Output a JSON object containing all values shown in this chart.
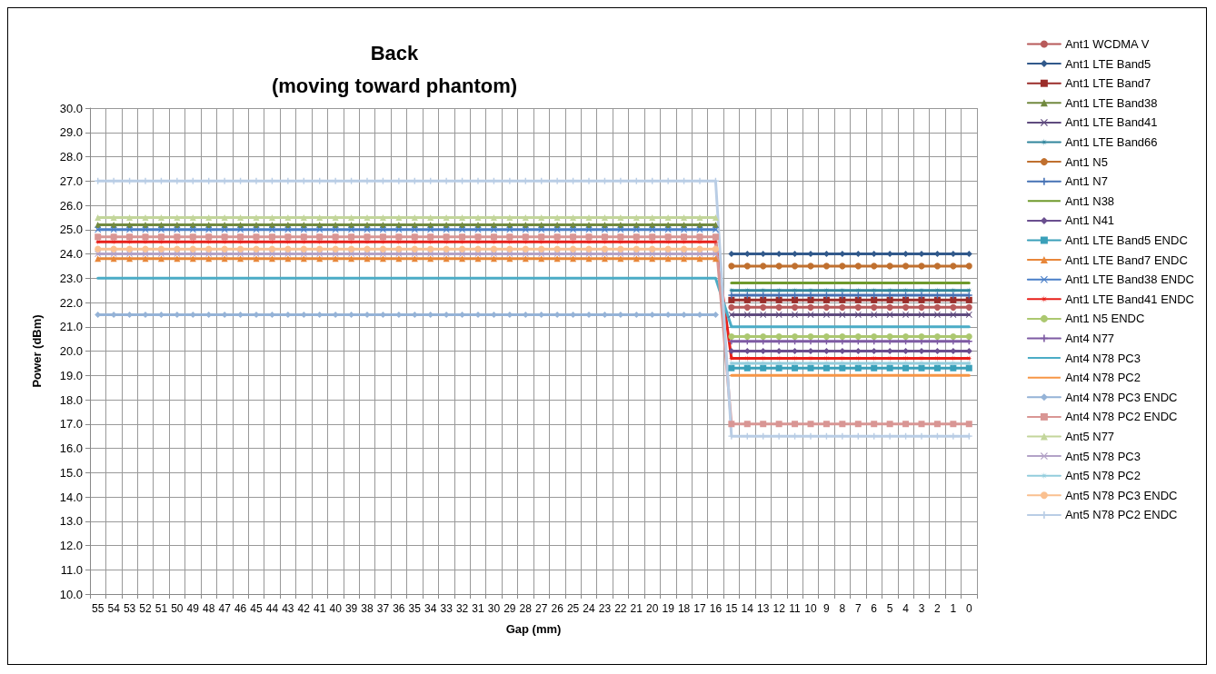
{
  "chart_data": {
    "type": "line",
    "title": "Back\n(moving toward phantom)",
    "xlabel": "Gap (mm)",
    "ylabel": "Power (dBm)",
    "categories": [
      "55",
      "54",
      "53",
      "52",
      "51",
      "50",
      "49",
      "48",
      "47",
      "46",
      "45",
      "44",
      "43",
      "42",
      "41",
      "40",
      "39",
      "38",
      "37",
      "36",
      "35",
      "34",
      "33",
      "32",
      "31",
      "30",
      "29",
      "28",
      "27",
      "26",
      "25",
      "24",
      "23",
      "22",
      "21",
      "20",
      "19",
      "18",
      "17",
      "16",
      "15",
      "14",
      "13",
      "12",
      "11",
      "10",
      "9",
      "8",
      "7",
      "6",
      "5",
      "4",
      "3",
      "2",
      "1",
      "0"
    ],
    "ylim": [
      10,
      30
    ],
    "yticks": [
      {
        "value": 10,
        "label": "10.0"
      },
      {
        "value": 11,
        "label": "11.0"
      },
      {
        "value": 12,
        "label": "12.0"
      },
      {
        "value": 13,
        "label": "13.0"
      },
      {
        "value": 14,
        "label": "14.0"
      },
      {
        "value": 15,
        "label": "15.0"
      },
      {
        "value": 16,
        "label": "16.0"
      },
      {
        "value": 17,
        "label": "17.0"
      },
      {
        "value": 18,
        "label": "18.0"
      },
      {
        "value": 19,
        "label": "19.0"
      },
      {
        "value": 20,
        "label": "20.0"
      },
      {
        "value": 21,
        "label": "21.0"
      },
      {
        "value": 22,
        "label": "22.0"
      },
      {
        "value": 23,
        "label": "23.0"
      },
      {
        "value": 24,
        "label": "24.0"
      },
      {
        "value": 25,
        "label": "25.0"
      },
      {
        "value": 26,
        "label": "26.0"
      },
      {
        "value": 27,
        "label": "27.0"
      },
      {
        "value": 28,
        "label": "28.0"
      },
      {
        "value": 29,
        "label": "29.0"
      },
      {
        "value": 30,
        "label": "30.0"
      }
    ],
    "grid": true,
    "legend": "right",
    "line_style": "solid",
    "series": [
      {
        "name": "Ant1 WCDMA V",
        "color": "#b85a5a",
        "marker": "circle",
        "values": [
          null,
          null,
          null,
          null,
          null,
          null,
          null,
          null,
          null,
          null,
          null,
          null,
          null,
          null,
          null,
          null,
          null,
          null,
          null,
          null,
          null,
          null,
          null,
          null,
          null,
          null,
          null,
          null,
          null,
          null,
          null,
          null,
          null,
          null,
          null,
          null,
          null,
          null,
          null,
          null,
          21.8,
          21.8,
          21.8,
          21.8,
          21.8,
          21.8,
          21.8,
          21.8,
          21.8,
          21.8,
          21.8,
          21.8,
          21.8,
          21.8,
          21.8,
          21.8
        ]
      },
      {
        "name": "Ant1 LTE Band5",
        "color": "#31598b",
        "marker": "diamond",
        "values": [
          null,
          null,
          null,
          null,
          null,
          null,
          null,
          null,
          null,
          null,
          null,
          null,
          null,
          null,
          null,
          null,
          null,
          null,
          null,
          null,
          null,
          null,
          null,
          null,
          null,
          null,
          null,
          null,
          null,
          null,
          null,
          null,
          null,
          null,
          null,
          null,
          null,
          null,
          null,
          null,
          24,
          24,
          24,
          24,
          24,
          24,
          24,
          24,
          24,
          24,
          24,
          24,
          24,
          24,
          24,
          24
        ]
      },
      {
        "name": "Ant1 LTE Band7",
        "color": "#9b2d2a",
        "marker": "square",
        "values": [
          null,
          null,
          null,
          null,
          null,
          null,
          null,
          null,
          null,
          null,
          null,
          null,
          null,
          null,
          null,
          null,
          null,
          null,
          null,
          null,
          null,
          null,
          null,
          null,
          null,
          null,
          null,
          null,
          null,
          null,
          null,
          null,
          null,
          null,
          null,
          null,
          null,
          null,
          null,
          null,
          22.1,
          22.1,
          22.1,
          22.1,
          22.1,
          22.1,
          22.1,
          22.1,
          22.1,
          22.1,
          22.1,
          22.1,
          22.1,
          22.1,
          22.1,
          22.1
        ]
      },
      {
        "name": "Ant1 LTE Band38",
        "color": "#71893f",
        "marker": "triangle",
        "values": [
          25.2,
          25.2,
          25.2,
          25.2,
          25.2,
          25.2,
          25.2,
          25.2,
          25.2,
          25.2,
          25.2,
          25.2,
          25.2,
          25.2,
          25.2,
          25.2,
          25.2,
          25.2,
          25.2,
          25.2,
          25.2,
          25.2,
          25.2,
          25.2,
          25.2,
          25.2,
          25.2,
          25.2,
          25.2,
          25.2,
          25.2,
          25.2,
          25.2,
          25.2,
          25.2,
          25.2,
          25.2,
          25.2,
          25.2,
          25.2,
          null,
          null,
          null,
          null,
          null,
          null,
          null,
          null,
          null,
          null,
          null,
          null,
          null,
          null,
          null,
          null
        ]
      },
      {
        "name": "Ant1 LTE Band41",
        "color": "#5f4b7e",
        "marker": "cross",
        "values": [
          null,
          null,
          null,
          null,
          null,
          null,
          null,
          null,
          null,
          null,
          null,
          null,
          null,
          null,
          null,
          null,
          null,
          null,
          null,
          null,
          null,
          null,
          null,
          null,
          null,
          null,
          null,
          null,
          null,
          null,
          null,
          null,
          null,
          null,
          null,
          null,
          null,
          null,
          null,
          null,
          21.5,
          21.5,
          21.5,
          21.5,
          21.5,
          21.5,
          21.5,
          21.5,
          21.5,
          21.5,
          21.5,
          21.5,
          21.5,
          21.5,
          21.5,
          21.5
        ]
      },
      {
        "name": "Ant1 LTE Band66",
        "color": "#31859c",
        "marker": "star",
        "values": [
          null,
          null,
          null,
          null,
          null,
          null,
          null,
          null,
          null,
          null,
          null,
          null,
          null,
          null,
          null,
          null,
          null,
          null,
          null,
          null,
          null,
          null,
          null,
          null,
          null,
          null,
          null,
          null,
          null,
          null,
          null,
          null,
          null,
          null,
          null,
          null,
          null,
          null,
          null,
          null,
          22.5,
          22.5,
          22.5,
          22.5,
          22.5,
          22.5,
          22.5,
          22.5,
          22.5,
          22.5,
          22.5,
          22.5,
          22.5,
          22.5,
          22.5,
          22.5
        ]
      },
      {
        "name": "Ant1 N5",
        "color": "#c0702f",
        "marker": "circle",
        "values": [
          null,
          null,
          null,
          null,
          null,
          null,
          null,
          null,
          null,
          null,
          null,
          null,
          null,
          null,
          null,
          null,
          null,
          null,
          null,
          null,
          null,
          null,
          null,
          null,
          null,
          null,
          null,
          null,
          null,
          null,
          null,
          null,
          null,
          null,
          null,
          null,
          null,
          null,
          null,
          null,
          23.5,
          23.5,
          23.5,
          23.5,
          23.5,
          23.5,
          23.5,
          23.5,
          23.5,
          23.5,
          23.5,
          23.5,
          23.5,
          23.5,
          23.5,
          23.5
        ]
      },
      {
        "name": "Ant1 N7",
        "color": "#4672b5",
        "marker": "plus",
        "values": [
          null,
          null,
          null,
          null,
          null,
          null,
          null,
          null,
          null,
          null,
          null,
          null,
          null,
          null,
          null,
          null,
          null,
          null,
          null,
          null,
          null,
          null,
          null,
          null,
          null,
          null,
          null,
          null,
          null,
          null,
          null,
          null,
          null,
          null,
          null,
          null,
          null,
          null,
          null,
          null,
          22.3,
          22.3,
          22.3,
          22.3,
          22.3,
          22.3,
          22.3,
          22.3,
          22.3,
          22.3,
          22.3,
          22.3,
          22.3,
          22.3,
          22.3,
          22.3
        ]
      },
      {
        "name": "Ant1 N38",
        "color": "#6f9a2c",
        "marker": "none",
        "values": [
          null,
          null,
          null,
          null,
          null,
          null,
          null,
          null,
          null,
          null,
          null,
          null,
          null,
          null,
          null,
          null,
          null,
          null,
          null,
          null,
          null,
          null,
          null,
          null,
          null,
          null,
          null,
          null,
          null,
          null,
          null,
          null,
          null,
          null,
          null,
          null,
          null,
          null,
          null,
          null,
          22.8,
          22.8,
          22.8,
          22.8,
          22.8,
          22.8,
          22.8,
          22.8,
          22.8,
          22.8,
          22.8,
          22.8,
          22.8,
          22.8,
          22.8,
          22.8
        ]
      },
      {
        "name": "Ant1 N41",
        "color": "#6a4f8f",
        "marker": "diamond",
        "values": [
          null,
          null,
          null,
          null,
          null,
          null,
          null,
          null,
          null,
          null,
          null,
          null,
          null,
          null,
          null,
          null,
          null,
          null,
          null,
          null,
          null,
          null,
          null,
          null,
          null,
          null,
          null,
          null,
          null,
          null,
          null,
          null,
          null,
          null,
          null,
          null,
          null,
          null,
          null,
          null,
          20,
          20,
          20,
          20,
          20,
          20,
          20,
          20,
          20,
          20,
          20,
          20,
          20,
          20,
          20,
          20
        ]
      },
      {
        "name": "Ant1 LTE Band5 ENDC",
        "color": "#3aa0b9",
        "marker": "square",
        "values": [
          null,
          null,
          null,
          null,
          null,
          null,
          null,
          null,
          null,
          null,
          null,
          null,
          null,
          null,
          null,
          null,
          null,
          null,
          null,
          null,
          null,
          null,
          null,
          null,
          null,
          null,
          null,
          null,
          null,
          null,
          null,
          null,
          null,
          null,
          null,
          null,
          null,
          null,
          null,
          null,
          19.3,
          19.3,
          19.3,
          19.3,
          19.3,
          19.3,
          19.3,
          19.3,
          19.3,
          19.3,
          19.3,
          19.3,
          19.3,
          19.3,
          19.3,
          19.3
        ]
      },
      {
        "name": "Ant1 LTE Band7 ENDC",
        "color": "#e8873a",
        "marker": "triangle",
        "values": [
          23.8,
          23.8,
          23.8,
          23.8,
          23.8,
          23.8,
          23.8,
          23.8,
          23.8,
          23.8,
          23.8,
          23.8,
          23.8,
          23.8,
          23.8,
          23.8,
          23.8,
          23.8,
          23.8,
          23.8,
          23.8,
          23.8,
          23.8,
          23.8,
          23.8,
          23.8,
          23.8,
          23.8,
          23.8,
          23.8,
          23.8,
          23.8,
          23.8,
          23.8,
          23.8,
          23.8,
          23.8,
          23.8,
          23.8,
          23.8,
          null,
          null,
          null,
          null,
          null,
          null,
          null,
          null,
          null,
          null,
          null,
          null,
          null,
          null,
          null,
          null
        ]
      },
      {
        "name": "Ant1 LTE Band38 ENDC",
        "color": "#4a7fc8",
        "marker": "cross",
        "values": [
          25,
          25,
          25,
          25,
          25,
          25,
          25,
          25,
          25,
          25,
          25,
          25,
          25,
          25,
          25,
          25,
          25,
          25,
          25,
          25,
          25,
          25,
          25,
          25,
          25,
          25,
          25,
          25,
          25,
          25,
          25,
          25,
          25,
          25,
          25,
          25,
          25,
          25,
          25,
          25,
          null,
          null,
          null,
          null,
          null,
          null,
          null,
          null,
          null,
          null,
          null,
          null,
          null,
          null,
          null,
          null
        ]
      },
      {
        "name": "Ant1 LTE Band41 ENDC",
        "color": "#e8201a",
        "marker": "star",
        "values": [
          24.5,
          24.5,
          24.5,
          24.5,
          24.5,
          24.5,
          24.5,
          24.5,
          24.5,
          24.5,
          24.5,
          24.5,
          24.5,
          24.5,
          24.5,
          24.5,
          24.5,
          24.5,
          24.5,
          24.5,
          24.5,
          24.5,
          24.5,
          24.5,
          24.5,
          24.5,
          24.5,
          24.5,
          24.5,
          24.5,
          24.5,
          24.5,
          24.5,
          24.5,
          24.5,
          24.5,
          24.5,
          24.5,
          24.5,
          24.5,
          19.7,
          19.7,
          19.7,
          19.7,
          19.7,
          19.7,
          19.7,
          19.7,
          19.7,
          19.7,
          19.7,
          19.7,
          19.7,
          19.7,
          19.7,
          19.7
        ]
      },
      {
        "name": "Ant1 N5 ENDC",
        "color": "#acc870",
        "marker": "circle",
        "values": [
          null,
          null,
          null,
          null,
          null,
          null,
          null,
          null,
          null,
          null,
          null,
          null,
          null,
          null,
          null,
          null,
          null,
          null,
          null,
          null,
          null,
          null,
          null,
          null,
          null,
          null,
          null,
          null,
          null,
          null,
          null,
          null,
          null,
          null,
          null,
          null,
          null,
          null,
          null,
          null,
          20.6,
          20.6,
          20.6,
          20.6,
          20.6,
          20.6,
          20.6,
          20.6,
          20.6,
          20.6,
          20.6,
          20.6,
          20.6,
          20.6,
          20.6,
          20.6
        ]
      },
      {
        "name": "Ant4 N77",
        "color": "#7e5ba3",
        "marker": "plus",
        "values": [
          null,
          null,
          null,
          null,
          null,
          null,
          null,
          null,
          null,
          null,
          null,
          null,
          null,
          null,
          null,
          null,
          null,
          null,
          null,
          null,
          null,
          null,
          null,
          null,
          null,
          null,
          null,
          null,
          null,
          null,
          null,
          null,
          null,
          null,
          null,
          null,
          null,
          null,
          null,
          null,
          20.4,
          20.4,
          20.4,
          20.4,
          20.4,
          20.4,
          20.4,
          20.4,
          20.4,
          20.4,
          20.4,
          20.4,
          20.4,
          20.4,
          20.4,
          20.4
        ]
      },
      {
        "name": "Ant4 N78 PC3",
        "color": "#4bacc6",
        "marker": "none",
        "values": [
          23,
          23,
          23,
          23,
          23,
          23,
          23,
          23,
          23,
          23,
          23,
          23,
          23,
          23,
          23,
          23,
          23,
          23,
          23,
          23,
          23,
          23,
          23,
          23,
          23,
          23,
          23,
          23,
          23,
          23,
          23,
          23,
          23,
          23,
          23,
          23,
          23,
          23,
          23,
          23,
          21,
          21,
          21,
          21,
          21,
          21,
          21,
          21,
          21,
          21,
          21,
          21,
          21,
          21,
          21,
          21
        ]
      },
      {
        "name": "Ant4 N78 PC2",
        "color": "#f79646",
        "marker": "none",
        "values": [
          null,
          null,
          null,
          null,
          null,
          null,
          null,
          null,
          null,
          null,
          null,
          null,
          null,
          null,
          null,
          null,
          null,
          null,
          null,
          null,
          null,
          null,
          null,
          null,
          null,
          null,
          null,
          null,
          null,
          null,
          null,
          null,
          null,
          null,
          null,
          null,
          null,
          null,
          null,
          null,
          19,
          19,
          19,
          19,
          19,
          19,
          19,
          19,
          19,
          19,
          19,
          19,
          19,
          19,
          19,
          19
        ]
      },
      {
        "name": "Ant4 N78 PC3 ENDC",
        "color": "#95b3d7",
        "marker": "diamond",
        "values": [
          21.5,
          21.5,
          21.5,
          21.5,
          21.5,
          21.5,
          21.5,
          21.5,
          21.5,
          21.5,
          21.5,
          21.5,
          21.5,
          21.5,
          21.5,
          21.5,
          21.5,
          21.5,
          21.5,
          21.5,
          21.5,
          21.5,
          21.5,
          21.5,
          21.5,
          21.5,
          21.5,
          21.5,
          21.5,
          21.5,
          21.5,
          21.5,
          21.5,
          21.5,
          21.5,
          21.5,
          21.5,
          21.5,
          21.5,
          21.5,
          null,
          null,
          null,
          null,
          null,
          null,
          null,
          null,
          null,
          null,
          null,
          null,
          null,
          null,
          null,
          null
        ]
      },
      {
        "name": "Ant4 N78 PC2 ENDC",
        "color": "#d99694",
        "marker": "square",
        "values": [
          24.7,
          24.7,
          24.7,
          24.7,
          24.7,
          24.7,
          24.7,
          24.7,
          24.7,
          24.7,
          24.7,
          24.7,
          24.7,
          24.7,
          24.7,
          24.7,
          24.7,
          24.7,
          24.7,
          24.7,
          24.7,
          24.7,
          24.7,
          24.7,
          24.7,
          24.7,
          24.7,
          24.7,
          24.7,
          24.7,
          24.7,
          24.7,
          24.7,
          24.7,
          24.7,
          24.7,
          24.7,
          24.7,
          24.7,
          24.7,
          17,
          17,
          17,
          17,
          17,
          17,
          17,
          17,
          17,
          17,
          17,
          17,
          17,
          17,
          17,
          17
        ]
      },
      {
        "name": "Ant5 N77",
        "color": "#c3d69b",
        "marker": "triangle",
        "values": [
          25.5,
          25.5,
          25.5,
          25.5,
          25.5,
          25.5,
          25.5,
          25.5,
          25.5,
          25.5,
          25.5,
          25.5,
          25.5,
          25.5,
          25.5,
          25.5,
          25.5,
          25.5,
          25.5,
          25.5,
          25.5,
          25.5,
          25.5,
          25.5,
          25.5,
          25.5,
          25.5,
          25.5,
          25.5,
          25.5,
          25.5,
          25.5,
          25.5,
          25.5,
          25.5,
          25.5,
          25.5,
          25.5,
          25.5,
          25.5,
          null,
          null,
          null,
          null,
          null,
          null,
          null,
          null,
          null,
          null,
          null,
          null,
          null,
          null,
          null,
          null
        ]
      },
      {
        "name": "Ant5 N78 PC3",
        "color": "#b3a2c7",
        "marker": "cross",
        "values": [
          24,
          24,
          24,
          24,
          24,
          24,
          24,
          24,
          24,
          24,
          24,
          24,
          24,
          24,
          24,
          24,
          24,
          24,
          24,
          24,
          24,
          24,
          24,
          24,
          24,
          24,
          24,
          24,
          24,
          24,
          24,
          24,
          24,
          24,
          24,
          24,
          24,
          24,
          24,
          24,
          null,
          null,
          null,
          null,
          null,
          null,
          null,
          null,
          null,
          null,
          null,
          null,
          null,
          null,
          null,
          null
        ]
      },
      {
        "name": "Ant5 N78 PC2",
        "color": "#93cddd",
        "marker": "star",
        "values": [
          null,
          null,
          null,
          null,
          null,
          null,
          null,
          null,
          null,
          null,
          null,
          null,
          null,
          null,
          null,
          null,
          null,
          null,
          null,
          null,
          null,
          null,
          null,
          null,
          null,
          null,
          null,
          null,
          null,
          null,
          null,
          null,
          null,
          null,
          null,
          null,
          null,
          null,
          null,
          null,
          19.5,
          19.5,
          19.5,
          19.5,
          19.5,
          19.5,
          19.5,
          19.5,
          19.5,
          19.5,
          19.5,
          19.5,
          19.5,
          19.5,
          19.5,
          19.5
        ]
      },
      {
        "name": "Ant5 N78 PC3 ENDC",
        "color": "#fac090",
        "marker": "circle",
        "values": [
          24.2,
          24.2,
          24.2,
          24.2,
          24.2,
          24.2,
          24.2,
          24.2,
          24.2,
          24.2,
          24.2,
          24.2,
          24.2,
          24.2,
          24.2,
          24.2,
          24.2,
          24.2,
          24.2,
          24.2,
          24.2,
          24.2,
          24.2,
          24.2,
          24.2,
          24.2,
          24.2,
          24.2,
          24.2,
          24.2,
          24.2,
          24.2,
          24.2,
          24.2,
          24.2,
          24.2,
          24.2,
          24.2,
          24.2,
          24.2,
          null,
          null,
          null,
          null,
          null,
          null,
          null,
          null,
          null,
          null,
          null,
          null,
          null,
          null,
          null,
          null
        ]
      },
      {
        "name": "Ant5 N78 PC2 ENDC",
        "color": "#b9cde5",
        "marker": "plus",
        "values": [
          27,
          27,
          27,
          27,
          27,
          27,
          27,
          27,
          27,
          27,
          27,
          27,
          27,
          27,
          27,
          27,
          27,
          27,
          27,
          27,
          27,
          27,
          27,
          27,
          27,
          27,
          27,
          27,
          27,
          27,
          27,
          27,
          27,
          27,
          27,
          27,
          27,
          27,
          27,
          27,
          16.5,
          16.5,
          16.5,
          16.5,
          16.5,
          16.5,
          16.5,
          16.5,
          16.5,
          16.5,
          16.5,
          16.5,
          16.5,
          16.5,
          16.5,
          16.5
        ]
      }
    ]
  }
}
